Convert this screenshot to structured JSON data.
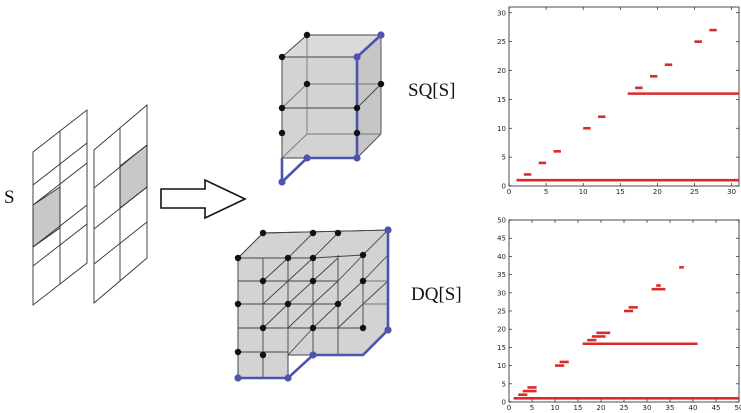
{
  "labels": {
    "s": "S",
    "sq": "SQ[S]",
    "dq": "DQ[S]"
  },
  "colors": {
    "edge_highlight": "#4b55b0",
    "cube_fill": "#d6d6d6",
    "cell_fill": "#c8c8c8",
    "bar": "#d92b2b"
  },
  "chart_data": [
    {
      "type": "interval",
      "xlim": [
        0,
        31
      ],
      "ylim": [
        0,
        31
      ],
      "xticks": [
        0,
        5,
        10,
        15,
        20,
        25,
        30
      ],
      "yticks": [
        0,
        5,
        10,
        15,
        20,
        25,
        30
      ],
      "segments": [
        {
          "x1": 1,
          "x2": 31,
          "y": 1
        },
        {
          "x1": 2,
          "x2": 3,
          "y": 2
        },
        {
          "x1": 4,
          "x2": 5,
          "y": 4
        },
        {
          "x1": 6,
          "x2": 7,
          "y": 6
        },
        {
          "x1": 10,
          "x2": 11,
          "y": 10
        },
        {
          "x1": 12,
          "x2": 13,
          "y": 12
        },
        {
          "x1": 16,
          "x2": 31,
          "y": 16
        },
        {
          "x1": 17,
          "x2": 18,
          "y": 17
        },
        {
          "x1": 19,
          "x2": 20,
          "y": 19
        },
        {
          "x1": 21,
          "x2": 22,
          "y": 21
        },
        {
          "x1": 25,
          "x2": 26,
          "y": 25
        },
        {
          "x1": 27,
          "x2": 28,
          "y": 27
        }
      ]
    },
    {
      "type": "interval",
      "xlim": [
        0,
        50
      ],
      "ylim": [
        0,
        50
      ],
      "xticks": [
        0,
        5,
        10,
        15,
        20,
        25,
        30,
        35,
        40,
        45,
        50
      ],
      "yticks": [
        0,
        5,
        10,
        15,
        20,
        25,
        30,
        35,
        40,
        45,
        50
      ],
      "segments": [
        {
          "x1": 1,
          "x2": 50,
          "y": 1
        },
        {
          "x1": 2,
          "x2": 4,
          "y": 2
        },
        {
          "x1": 3,
          "x2": 6,
          "y": 3
        },
        {
          "x1": 4,
          "x2": 6,
          "y": 4
        },
        {
          "x1": 10,
          "x2": 12,
          "y": 10
        },
        {
          "x1": 11,
          "x2": 13,
          "y": 11
        },
        {
          "x1": 16,
          "x2": 41,
          "y": 16
        },
        {
          "x1": 17,
          "x2": 19,
          "y": 17
        },
        {
          "x1": 18,
          "x2": 21,
          "y": 18
        },
        {
          "x1": 19,
          "x2": 22,
          "y": 19
        },
        {
          "x1": 25,
          "x2": 27,
          "y": 25
        },
        {
          "x1": 26,
          "x2": 28,
          "y": 26
        },
        {
          "x1": 31,
          "x2": 34,
          "y": 31
        },
        {
          "x1": 32,
          "x2": 33,
          "y": 32
        },
        {
          "x1": 37,
          "x2": 38,
          "y": 37
        }
      ]
    }
  ]
}
